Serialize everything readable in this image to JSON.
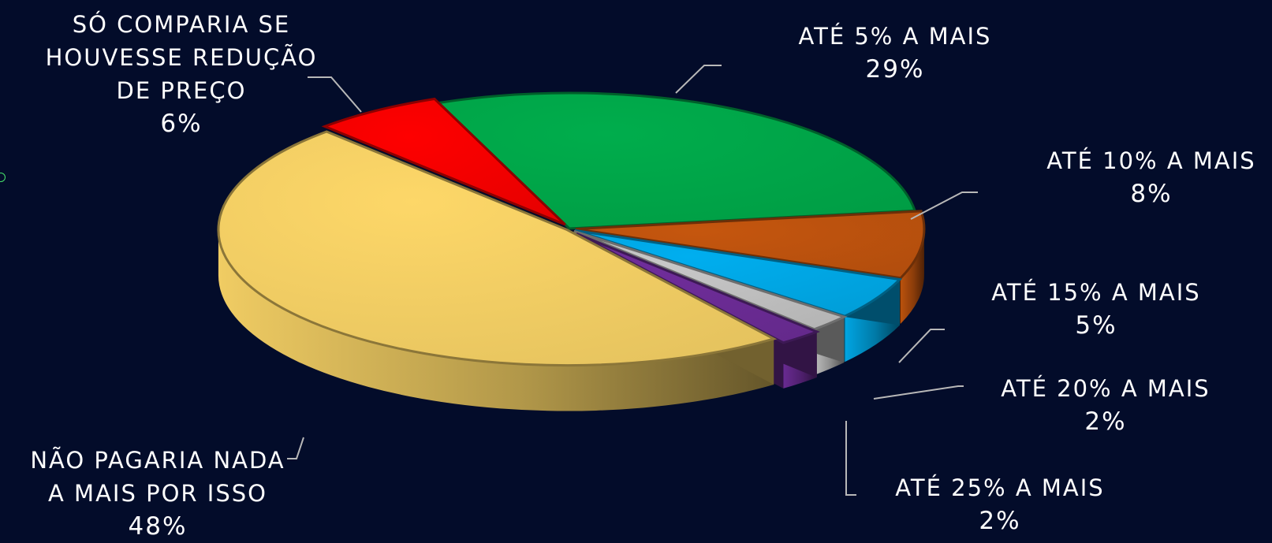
{
  "chart_data": {
    "type": "pie",
    "slices": [
      {
        "label": "ATÉ 5% A MAIS",
        "value": 29,
        "display": "29%",
        "color": "#00ad4c"
      },
      {
        "label": "ATÉ 10% A MAIS",
        "value": 8,
        "display": "8%",
        "color": "#c5560e"
      },
      {
        "label": "ATÉ 15% A MAIS",
        "value": 5,
        "display": "5%",
        "color": "#00aeef"
      },
      {
        "label": "ATÉ 20% A MAIS",
        "value": 2,
        "display": "2%",
        "color": "#c8c8c8"
      },
      {
        "label": "ATÉ 25% A MAIS",
        "value": 2,
        "display": "2%",
        "color": "#6f2d9a"
      },
      {
        "label": "NÃO PAGARIA NADA A MAIS POR ISSO",
        "value": 48,
        "display": "48%",
        "color": "#fdd768"
      },
      {
        "label": "SÓ COMPARIA SE HOUVESSE REDUÇÃO DE PREÇO",
        "value": 6,
        "display": "6%",
        "color": "#fe0000"
      }
    ],
    "labels_text": {
      "l5": {
        "line1": "ATÉ 5% A MAIS"
      },
      "l10": {
        "line1": "ATÉ 10% A MAIS"
      },
      "l15": {
        "line1": "ATÉ 15% A MAIS"
      },
      "l20": {
        "line1": "ATÉ 20% A MAIS"
      },
      "l25": {
        "line1": "ATÉ 25% A MAIS"
      },
      "lnao": {
        "line1": "NÃO PAGARIA NADA",
        "line2": "A MAIS POR ISSO"
      },
      "lso": {
        "line1": "SÓ COMPARIA SE",
        "line2": "HOUVESSE REDUÇÃO",
        "line3": "DE PREÇO"
      }
    },
    "style": "3d-exploded",
    "legend": "none",
    "background": "#030c2a"
  }
}
